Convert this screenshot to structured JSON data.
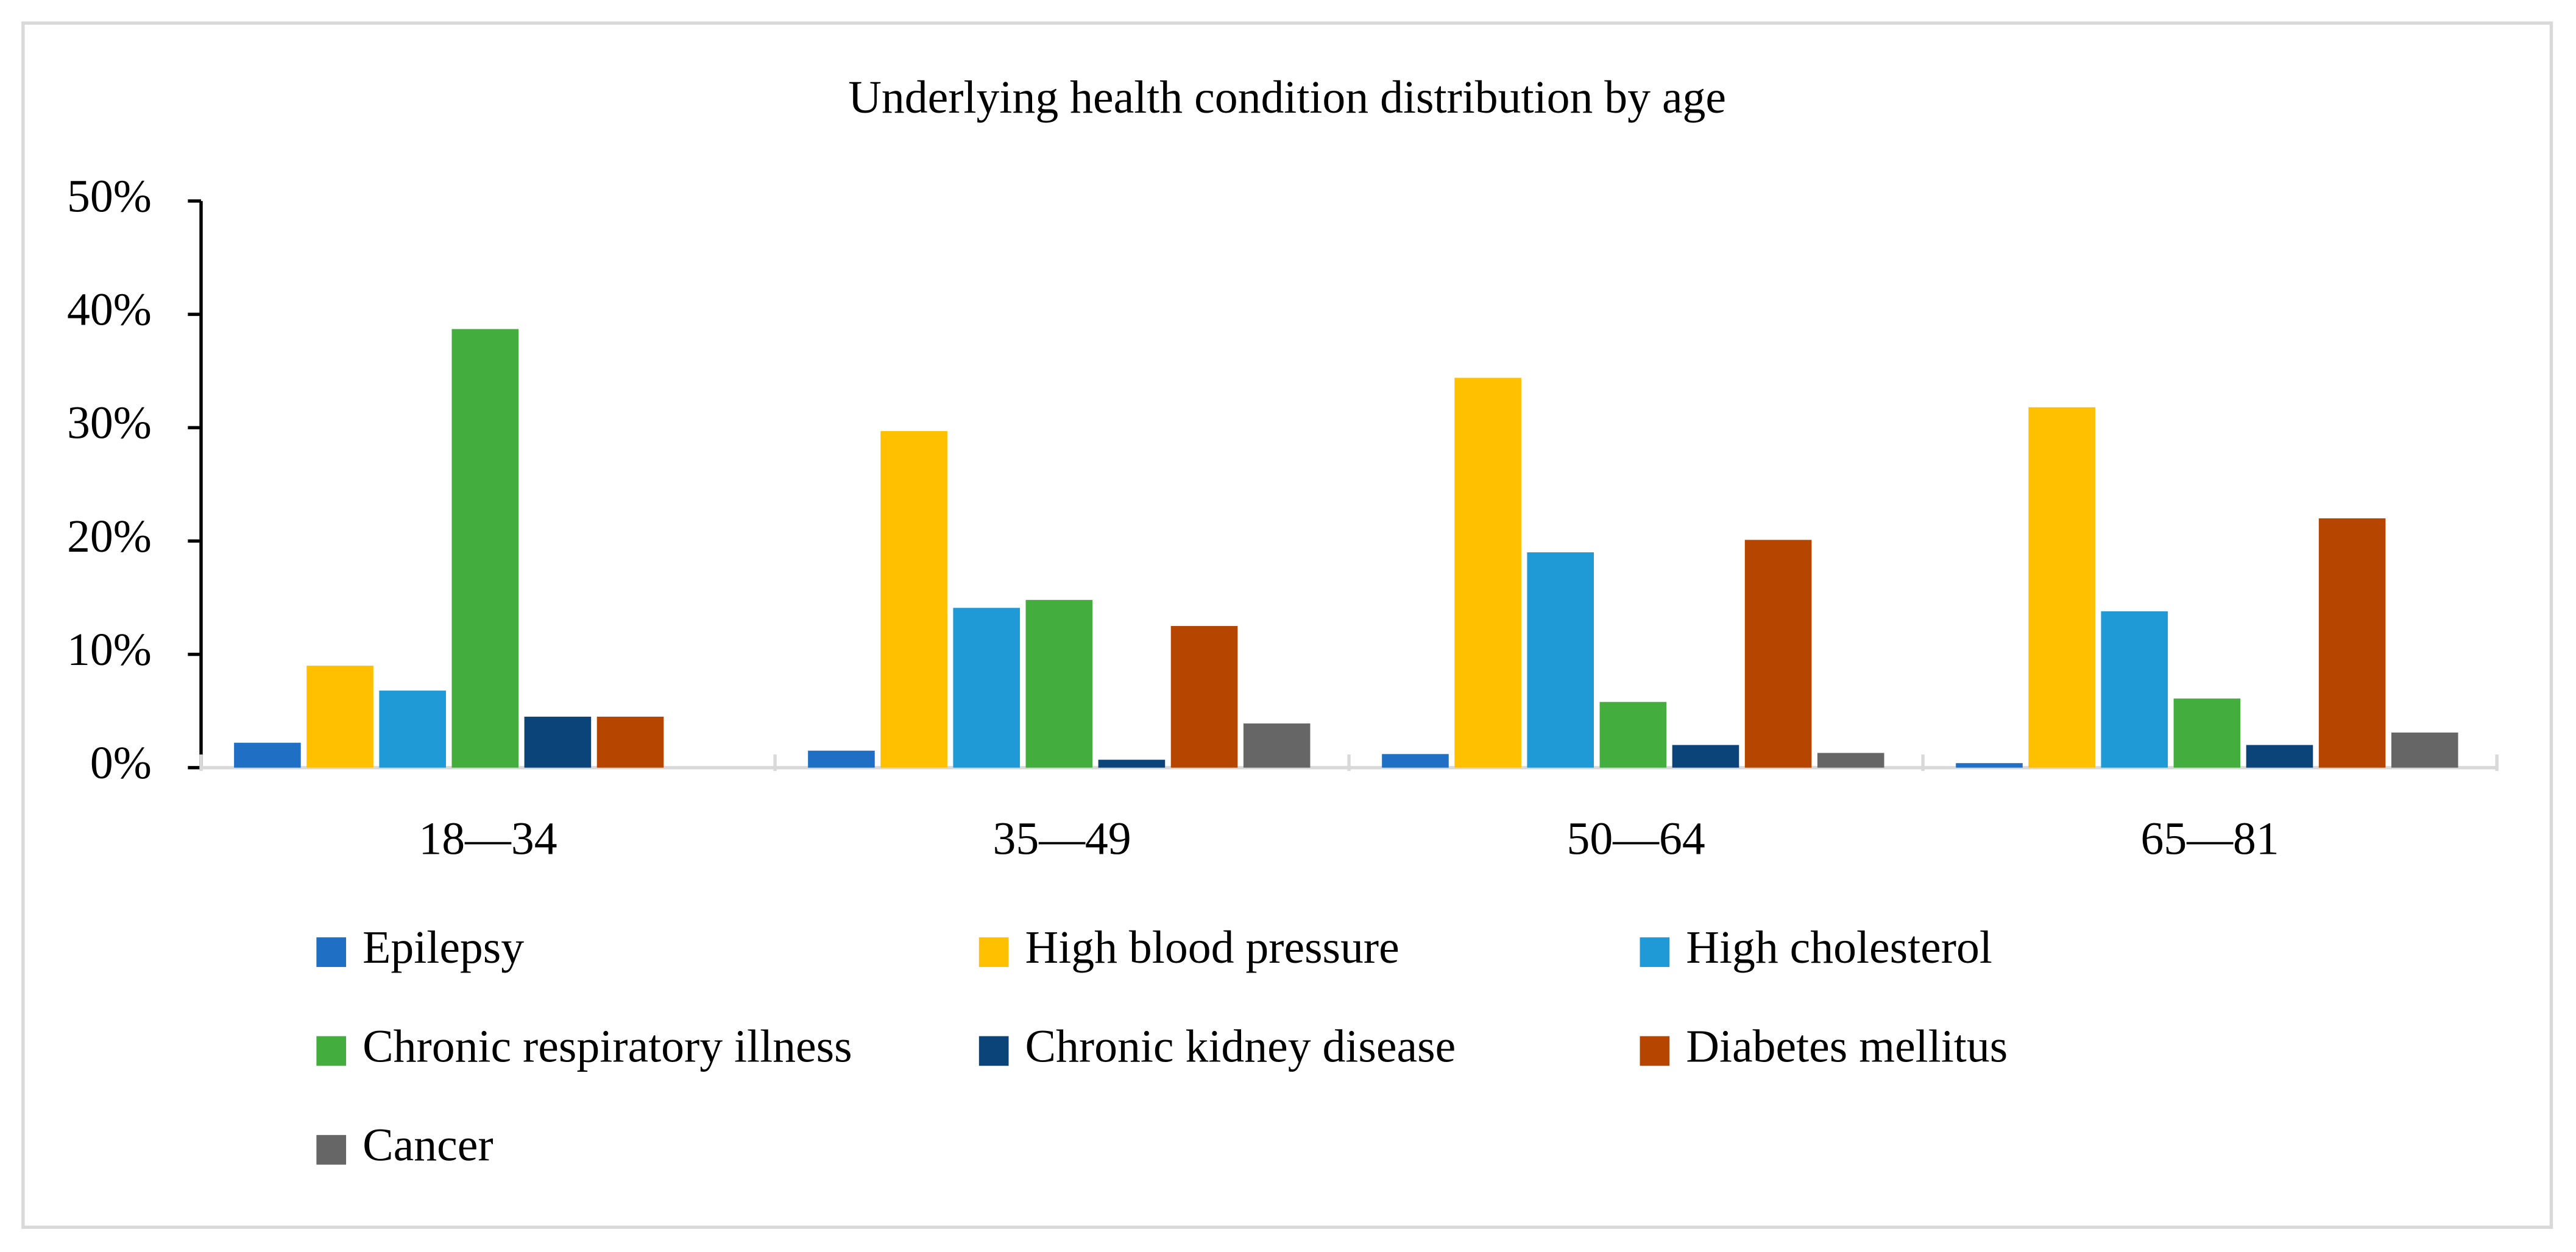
{
  "chart_data": {
    "type": "bar",
    "title": "Underlying health condition distribution by age",
    "categories": [
      "18—34",
      "35—49",
      "50—64",
      "65—81"
    ],
    "series": [
      {
        "name": "Epilepsy",
        "color": "#1f6fc5",
        "values": [
          2.2,
          1.5,
          1.2,
          0.4
        ]
      },
      {
        "name": "High blood pressure",
        "color": "#ffc000",
        "values": [
          9.0,
          29.7,
          34.4,
          31.8
        ]
      },
      {
        "name": "High cholesterol",
        "color": "#1f9ad6",
        "values": [
          6.8,
          14.1,
          19.0,
          13.8
        ]
      },
      {
        "name": "Chronic respiratory illness",
        "color": "#43ad3d",
        "values": [
          38.7,
          14.8,
          5.8,
          6.1
        ]
      },
      {
        "name": "Chronic kidney disease",
        "color": "#0b4478",
        "values": [
          4.5,
          0.7,
          2.0,
          2.0
        ]
      },
      {
        "name": "Diabetes mellitus",
        "color": "#b64500",
        "values": [
          4.5,
          12.5,
          20.1,
          22.0
        ]
      },
      {
        "name": "Cancer",
        "color": "#666666",
        "values": [
          0,
          3.9,
          1.3,
          3.1
        ]
      }
    ],
    "ylim": [
      0,
      50
    ],
    "yticks": [
      {
        "value": 0,
        "label": "0%"
      },
      {
        "value": 10,
        "label": "10%"
      },
      {
        "value": 20,
        "label": "20%"
      },
      {
        "value": 30,
        "label": "30%"
      },
      {
        "value": 40,
        "label": "40%"
      },
      {
        "value": 50,
        "label": "50%"
      }
    ]
  }
}
